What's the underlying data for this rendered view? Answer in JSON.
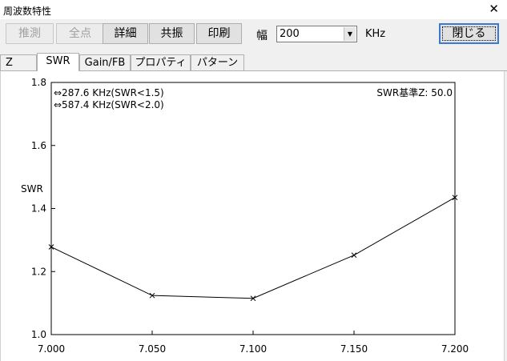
{
  "window": {
    "title": "周波数特性",
    "close_glyph": "✕"
  },
  "toolbar": {
    "buttons": [
      {
        "label": "推測",
        "enabled": false
      },
      {
        "label": "全点",
        "enabled": false
      },
      {
        "label": "詳細",
        "enabled": true
      },
      {
        "label": "共振",
        "enabled": true
      },
      {
        "label": "印刷",
        "enabled": true
      }
    ],
    "width_label": "幅",
    "width_value": "200",
    "width_unit": "KHz",
    "close_label": "閉じる"
  },
  "tabs": [
    {
      "label": "Z",
      "active": false
    },
    {
      "label": "SWR",
      "active": true
    },
    {
      "label": "Gain/FB",
      "active": false
    },
    {
      "label": "プロパティ",
      "active": false
    },
    {
      "label": "パターン",
      "active": false
    }
  ],
  "chart_data": {
    "type": "line",
    "ylabel": "SWR",
    "xlim": [
      7.0,
      7.2
    ],
    "ylim": [
      1.0,
      1.8
    ],
    "x_ticks": [
      "7.000",
      "7.050",
      "7.100",
      "7.150",
      "7.200"
    ],
    "y_ticks": [
      "1.0",
      "1.2",
      "1.4",
      "1.6",
      "1.8"
    ],
    "x_tick_values": [
      7.0,
      7.05,
      7.1,
      7.15,
      7.2
    ],
    "y_tick_values": [
      1.0,
      1.2,
      1.4,
      1.6,
      1.8
    ],
    "x": [
      7.0,
      7.05,
      7.1,
      7.15,
      7.2
    ],
    "y": [
      1.278,
      1.124,
      1.115,
      1.252,
      1.435
    ],
    "annotations": [
      "⇔287.6 KHz(SWR<1.5)",
      "⇔587.4 KHz(SWR<2.0)"
    ],
    "reference_label": "SWR基準Z: 50.0",
    "grid": false,
    "line_color": "#000000"
  }
}
